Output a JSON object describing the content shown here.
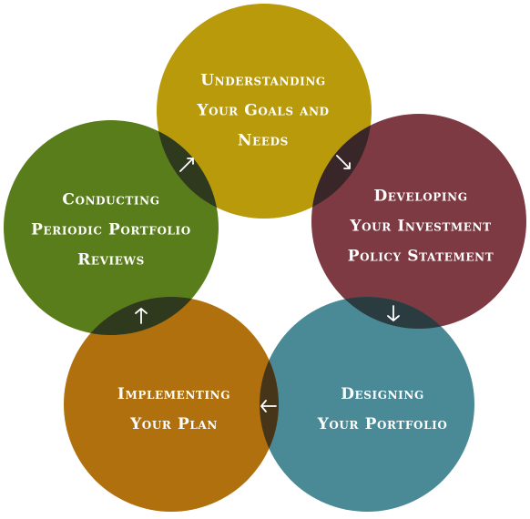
{
  "steps": [
    {
      "id": "understanding",
      "color": "#b89a0a",
      "lines": [
        "Understanding",
        "Your Goals and",
        "Needs"
      ]
    },
    {
      "id": "developing",
      "color": "#7d3a42",
      "lines": [
        "Developing",
        "Your Investment",
        "Policy Statement"
      ]
    },
    {
      "id": "designing",
      "color": "#4a8a96",
      "lines": [
        "Designing",
        "Your Portfolio"
      ]
    },
    {
      "id": "implementing",
      "color": "#b0700e",
      "lines": [
        "Implementing",
        "Your Plan"
      ]
    },
    {
      "id": "conducting",
      "color": "#5a7d1c",
      "lines": [
        "Conducting",
        "Periodic Portfolio",
        "Reviews"
      ]
    }
  ],
  "arrows": [
    {
      "from": "understanding",
      "to": "developing",
      "direction": "down-right"
    },
    {
      "from": "developing",
      "to": "designing",
      "direction": "down"
    },
    {
      "from": "designing",
      "to": "implementing",
      "direction": "left"
    },
    {
      "from": "implementing",
      "to": "conducting",
      "direction": "up"
    },
    {
      "from": "conducting",
      "to": "understanding",
      "direction": "up-right"
    }
  ]
}
